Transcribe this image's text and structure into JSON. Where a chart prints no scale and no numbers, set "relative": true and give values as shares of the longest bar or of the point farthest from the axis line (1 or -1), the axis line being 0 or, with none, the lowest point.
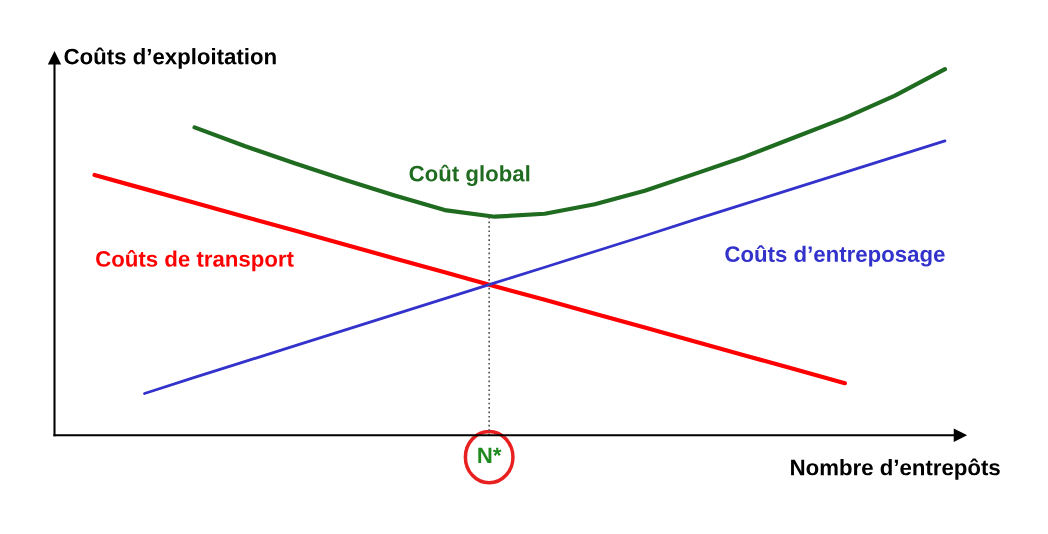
{
  "chart_data": {
    "type": "line",
    "relative": true,
    "xlabel": "Nombre d’entrepôts",
    "ylabel": "Coûts d’exploitation",
    "categories": [
      null,
      null,
      null,
      null,
      null,
      null,
      null,
      null,
      null,
      null,
      null,
      null,
      null,
      null,
      null,
      null,
      null,
      null
    ],
    "annotations": [
      "N*"
    ],
    "series": [
      {
        "name": "Coûts de transport",
        "color": "#ff0000",
        "values": [
          0.711,
          0.673,
          0.635,
          0.597,
          0.559,
          0.521,
          0.483,
          0.445,
          0.407,
          0.37,
          0.332,
          0.294,
          0.256,
          0.218,
          0.18,
          0.142,
          null,
          null
        ]
      },
      {
        "name": "Coûts d’entreposage",
        "color": "#3333cc",
        "values": [
          null,
          0.114,
          0.158,
          0.201,
          0.244,
          0.287,
          0.33,
          0.373,
          0.416,
          0.459,
          0.502,
          0.545,
          0.589,
          0.632,
          0.675,
          0.718,
          0.761,
          0.804
        ]
      },
      {
        "name": "Coût global",
        "color": "#1f6b1f",
        "values": [
          null,
          null,
          0.841,
          0.79,
          0.743,
          0.698,
          0.655,
          0.615,
          0.597,
          0.605,
          0.631,
          0.668,
          0.714,
          0.761,
          0.814,
          0.867,
          0.928,
          1.0
        ]
      }
    ],
    "grid": false,
    "line_style": "solid",
    "marker": "none"
  }
}
